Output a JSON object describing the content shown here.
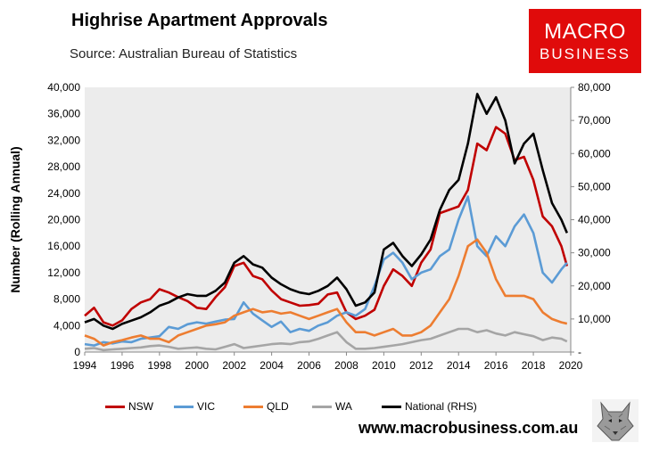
{
  "header": {
    "title": "Highrise Apartment Approvals",
    "subtitle": "Source: Australian Bureau of Statistics"
  },
  "logo": {
    "line1": "MACRO",
    "line2": "BUSINESS",
    "color": "#e00b0b"
  },
  "footer": {
    "url": "www.macrobusiness.com.au"
  },
  "chart_data": {
    "type": "line",
    "title": "Highrise Apartment Approvals",
    "ylabel": "Number (Rolling Annual)",
    "xlabel": "",
    "xlim": [
      1994,
      2020
    ],
    "ylim": [
      0,
      40000
    ],
    "y2lim": [
      0,
      80000
    ],
    "x_ticks": [
      "1994",
      "1996",
      "1998",
      "2000",
      "2002",
      "2004",
      "2006",
      "2008",
      "2010",
      "2012",
      "2014",
      "2016",
      "2018",
      "2020"
    ],
    "y_ticks": [
      "0",
      "4,000",
      "8,000",
      "12,000",
      "16,000",
      "20,000",
      "24,000",
      "28,000",
      "32,000",
      "36,000",
      "40,000"
    ],
    "y2_ticks": [
      "-",
      "10,000",
      "20,000",
      "30,000",
      "40,000",
      "50,000",
      "60,000",
      "70,000",
      "80,000"
    ],
    "legend_position": "bottom",
    "grid": false,
    "series": [
      {
        "name": "NSW",
        "axis": "left",
        "color": "#c00000",
        "x": [
          1994.0,
          1994.5,
          1995.0,
          1995.5,
          1996.0,
          1996.5,
          1997.0,
          1997.5,
          1998.0,
          1998.5,
          1999.0,
          1999.5,
          2000.0,
          2000.5,
          2001.0,
          2001.5,
          2002.0,
          2002.5,
          2003.0,
          2003.5,
          2004.0,
          2004.5,
          2005.0,
          2005.5,
          2006.0,
          2006.5,
          2007.0,
          2007.5,
          2008.0,
          2008.5,
          2009.0,
          2009.5,
          2010.0,
          2010.5,
          2011.0,
          2011.5,
          2012.0,
          2012.5,
          2013.0,
          2013.5,
          2014.0,
          2014.5,
          2015.0,
          2015.5,
          2016.0,
          2016.5,
          2017.0,
          2017.5,
          2018.0,
          2018.5,
          2019.0,
          2019.5,
          2019.8
        ],
        "y": [
          5500,
          6700,
          4500,
          4000,
          4800,
          6500,
          7500,
          8000,
          9500,
          9000,
          8300,
          7700,
          6700,
          6500,
          8300,
          9800,
          13000,
          13500,
          11500,
          11000,
          9300,
          8000,
          7500,
          7000,
          7100,
          7300,
          8700,
          9000,
          6000,
          5000,
          5500,
          6400,
          10000,
          12500,
          11500,
          10000,
          13500,
          15500,
          21000,
          21500,
          22000,
          24500,
          31500,
          30500,
          34000,
          33000,
          29000,
          29500,
          26000,
          20500,
          19000,
          16000,
          13000
        ]
      },
      {
        "name": "VIC",
        "axis": "left",
        "color": "#5b9bd5",
        "x": [
          1994.0,
          1994.5,
          1995.0,
          1995.5,
          1996.0,
          1996.5,
          1997.0,
          1997.5,
          1998.0,
          1998.5,
          1999.0,
          1999.5,
          2000.0,
          2000.5,
          2001.0,
          2001.5,
          2002.0,
          2002.5,
          2003.0,
          2003.5,
          2004.0,
          2004.5,
          2005.0,
          2005.5,
          2006.0,
          2006.5,
          2007.0,
          2007.5,
          2008.0,
          2008.5,
          2009.0,
          2009.5,
          2010.0,
          2010.5,
          2011.0,
          2011.5,
          2012.0,
          2012.5,
          2013.0,
          2013.5,
          2014.0,
          2014.5,
          2015.0,
          2015.5,
          2016.0,
          2016.5,
          2017.0,
          2017.5,
          2018.0,
          2018.5,
          2019.0,
          2019.5,
          2019.8
        ],
        "y": [
          1200,
          1000,
          1500,
          1300,
          1600,
          1500,
          2000,
          2200,
          2400,
          3800,
          3500,
          4200,
          4500,
          4300,
          4600,
          4900,
          5000,
          7500,
          5800,
          4800,
          3800,
          4600,
          3000,
          3500,
          3200,
          4000,
          4500,
          5500,
          6000,
          5500,
          6500,
          10000,
          14000,
          15000,
          13500,
          11000,
          12000,
          12500,
          14500,
          15500,
          20000,
          23500,
          16000,
          14500,
          17500,
          16000,
          19000,
          20800,
          18000,
          12000,
          10500,
          12500,
          13500
        ]
      },
      {
        "name": "QLD",
        "axis": "left",
        "color": "#ed7d31",
        "x": [
          1994.0,
          1994.5,
          1995.0,
          1995.5,
          1996.0,
          1996.5,
          1997.0,
          1997.5,
          1998.0,
          1998.5,
          1999.0,
          1999.5,
          2000.0,
          2000.5,
          2001.0,
          2001.5,
          2002.0,
          2002.5,
          2003.0,
          2003.5,
          2004.0,
          2004.5,
          2005.0,
          2005.5,
          2006.0,
          2006.5,
          2007.0,
          2007.5,
          2008.0,
          2008.5,
          2009.0,
          2009.5,
          2010.0,
          2010.5,
          2011.0,
          2011.5,
          2012.0,
          2012.5,
          2013.0,
          2013.5,
          2014.0,
          2014.5,
          2015.0,
          2015.5,
          2016.0,
          2016.5,
          2017.0,
          2017.5,
          2018.0,
          2018.5,
          2019.0,
          2019.5,
          2019.8
        ],
        "y": [
          2500,
          2000,
          1000,
          1500,
          1800,
          2200,
          2500,
          2000,
          2000,
          1500,
          2500,
          3000,
          3500,
          4000,
          4200,
          4500,
          5500,
          6000,
          6500,
          6000,
          6200,
          5800,
          6000,
          5500,
          5000,
          5500,
          6000,
          6500,
          4500,
          3000,
          3000,
          2500,
          3000,
          3500,
          2500,
          2500,
          3000,
          4000,
          6000,
          8000,
          11500,
          16000,
          17000,
          15000,
          11000,
          8500,
          8500,
          8500,
          8000,
          6000,
          5000,
          4500,
          4300
        ]
      },
      {
        "name": "WA",
        "axis": "left",
        "color": "#a5a5a5",
        "x": [
          1994.0,
          1994.5,
          1995.0,
          1995.5,
          1996.0,
          1996.5,
          1997.0,
          1997.5,
          1998.0,
          1998.5,
          1999.0,
          1999.5,
          2000.0,
          2000.5,
          2001.0,
          2001.5,
          2002.0,
          2002.5,
          2003.0,
          2003.5,
          2004.0,
          2004.5,
          2005.0,
          2005.5,
          2006.0,
          2006.5,
          2007.0,
          2007.5,
          2008.0,
          2008.5,
          2009.0,
          2009.5,
          2010.0,
          2010.5,
          2011.0,
          2011.5,
          2012.0,
          2012.5,
          2013.0,
          2013.5,
          2014.0,
          2014.5,
          2015.0,
          2015.5,
          2016.0,
          2016.5,
          2017.0,
          2017.5,
          2018.0,
          2018.5,
          2019.0,
          2019.5,
          2019.8
        ],
        "y": [
          500,
          600,
          300,
          400,
          500,
          600,
          700,
          900,
          1000,
          800,
          500,
          600,
          700,
          500,
          400,
          800,
          1200,
          600,
          800,
          1000,
          1200,
          1300,
          1200,
          1500,
          1600,
          2000,
          2500,
          3000,
          1500,
          500,
          500,
          600,
          800,
          1000,
          1200,
          1500,
          1800,
          2000,
          2500,
          3000,
          3500,
          3500,
          3000,
          3300,
          2800,
          2500,
          3000,
          2700,
          2400,
          1800,
          2200,
          2000,
          1600
        ]
      },
      {
        "name": "National (RHS)",
        "axis": "right",
        "color": "#000000",
        "x": [
          1994.0,
          1994.5,
          1995.0,
          1995.5,
          1996.0,
          1996.5,
          1997.0,
          1997.5,
          1998.0,
          1998.5,
          1999.0,
          1999.5,
          2000.0,
          2000.5,
          2001.0,
          2001.5,
          2002.0,
          2002.5,
          2003.0,
          2003.5,
          2004.0,
          2004.5,
          2005.0,
          2005.5,
          2006.0,
          2006.5,
          2007.0,
          2007.5,
          2008.0,
          2008.5,
          2009.0,
          2009.5,
          2010.0,
          2010.5,
          2011.0,
          2011.5,
          2012.0,
          2012.5,
          2013.0,
          2013.5,
          2014.0,
          2014.5,
          2015.0,
          2015.5,
          2016.0,
          2016.5,
          2017.0,
          2017.5,
          2018.0,
          2018.5,
          2019.0,
          2019.5,
          2019.8
        ],
        "y": [
          9000,
          10000,
          8000,
          7000,
          8500,
          9500,
          10500,
          12000,
          14000,
          15000,
          16500,
          17500,
          17000,
          17000,
          18500,
          21000,
          27000,
          29000,
          26500,
          25500,
          22500,
          20500,
          19000,
          18000,
          17500,
          18500,
          20000,
          22500,
          19000,
          14000,
          15000,
          18000,
          31000,
          33000,
          29000,
          26000,
          29500,
          34000,
          43000,
          49000,
          52000,
          63000,
          78000,
          72000,
          77000,
          70000,
          57000,
          63000,
          66000,
          55000,
          45000,
          40000,
          36000
        ]
      }
    ]
  }
}
